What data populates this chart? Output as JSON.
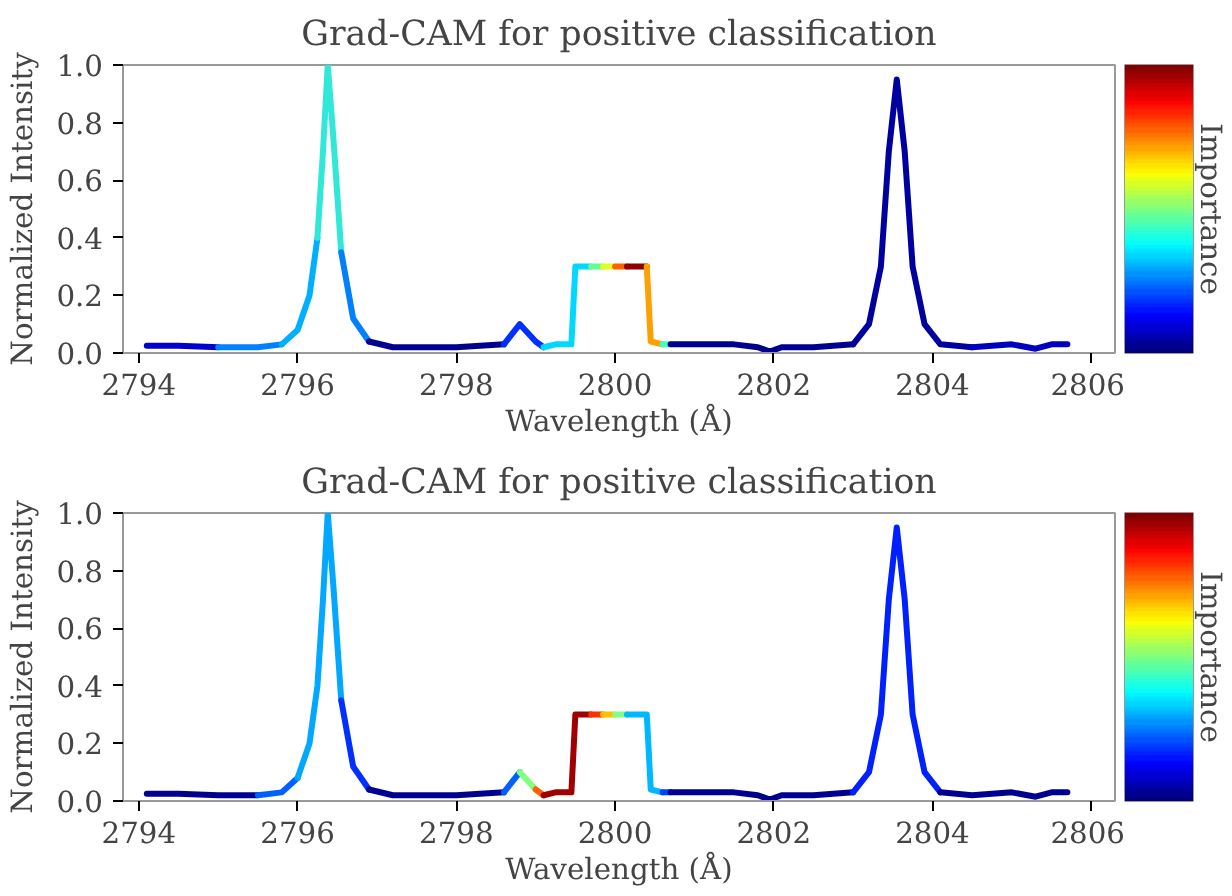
{
  "chart_data": [
    {
      "type": "line",
      "title": "Grad-CAM for positive classification",
      "xlabel": "Wavelength (Å)",
      "ylabel": "Normalized Intensity",
      "clabel": "Importance",
      "series": [
        {
          "color": "#0000d0",
          "x": [
            2794.1,
            2794.5,
            2795.0
          ],
          "values": [
            0.025,
            0.025,
            0.02
          ]
        },
        {
          "color": "#0080ff",
          "x": [
            2795.0,
            2795.5,
            2795.8
          ],
          "values": [
            0.02,
            0.02,
            0.03
          ]
        },
        {
          "color": "#00b0ff",
          "x": [
            2795.8,
            2796.0,
            2796.15,
            2796.25
          ],
          "values": [
            0.03,
            0.08,
            0.2,
            0.4
          ]
        },
        {
          "color": "#30e8d8",
          "x": [
            2796.25,
            2796.32,
            2796.38,
            2796.45,
            2796.55
          ],
          "values": [
            0.4,
            0.7,
            1.0,
            0.75,
            0.35
          ]
        },
        {
          "color": "#0080ff",
          "x": [
            2796.55,
            2796.7,
            2796.9
          ],
          "values": [
            0.35,
            0.12,
            0.04
          ]
        },
        {
          "color": "#000090",
          "x": [
            2796.9,
            2797.2,
            2798.0,
            2798.6
          ],
          "values": [
            0.04,
            0.02,
            0.02,
            0.03
          ]
        },
        {
          "color": "#0030ff",
          "x": [
            2798.6,
            2798.8,
            2799.0,
            2799.1
          ],
          "values": [
            0.03,
            0.1,
            0.04,
            0.02
          ]
        },
        {
          "color": "#00d8ff",
          "x": [
            2799.1,
            2799.25,
            2799.45,
            2799.5,
            2799.7
          ],
          "values": [
            0.02,
            0.03,
            0.03,
            0.3,
            0.3
          ]
        },
        {
          "color": "#60ff90",
          "x": [
            2799.7,
            2799.85
          ],
          "values": [
            0.3,
            0.3
          ]
        },
        {
          "color": "#e0ff20",
          "x": [
            2799.85,
            2800.0
          ],
          "values": [
            0.3,
            0.3
          ]
        },
        {
          "color": "#ff6000",
          "x": [
            2800.0,
            2800.15
          ],
          "values": [
            0.3,
            0.3
          ]
        },
        {
          "color": "#900000",
          "x": [
            2800.15,
            2800.3,
            2800.4
          ],
          "values": [
            0.3,
            0.3,
            0.3
          ]
        },
        {
          "color": "#ffa000",
          "x": [
            2800.4,
            2800.45,
            2800.6
          ],
          "values": [
            0.3,
            0.04,
            0.03
          ]
        },
        {
          "color": "#40ffc0",
          "x": [
            2800.6,
            2800.7
          ],
          "values": [
            0.03,
            0.03
          ]
        },
        {
          "color": "#000090",
          "x": [
            2800.7,
            2801.0,
            2801.5,
            2801.8,
            2801.95,
            2802.1,
            2802.5,
            2803.0
          ],
          "values": [
            0.03,
            0.03,
            0.03,
            0.02,
            0.005,
            0.02,
            0.02,
            0.03
          ]
        },
        {
          "color": "#0000a0",
          "x": [
            2803.0,
            2803.2,
            2803.35,
            2803.45,
            2803.55,
            2803.65,
            2803.75,
            2803.9,
            2804.1,
            2804.5
          ],
          "values": [
            0.03,
            0.1,
            0.3,
            0.7,
            0.95,
            0.7,
            0.3,
            0.1,
            0.03,
            0.02
          ]
        },
        {
          "color": "#0000c0",
          "x": [
            2804.5,
            2805.0,
            2805.3,
            2805.5,
            2805.7
          ],
          "values": [
            0.02,
            0.03,
            0.015,
            0.03,
            0.03
          ]
        }
      ],
      "xlim": [
        2793.8,
        2806.3
      ],
      "xticks": [
        2794,
        2796,
        2798,
        2800,
        2802,
        2804,
        2806
      ],
      "ylim": [
        0,
        1
      ],
      "yticks": [
        {
          "value": 0,
          "label": "0.0"
        },
        {
          "value": 0.2,
          "label": "0.2"
        },
        {
          "value": 0.4,
          "label": "0.4"
        },
        {
          "value": 0.6,
          "label": "0.6"
        },
        {
          "value": 0.8,
          "label": "0.8"
        },
        {
          "value": 1,
          "label": "1.0"
        }
      ]
    },
    {
      "type": "line",
      "title": "Grad-CAM for positive classification",
      "xlabel": "Wavelength (Å)",
      "ylabel": "Normalized Intensity",
      "clabel": "Importance",
      "series": [
        {
          "color": "#000090",
          "x": [
            2794.1,
            2794.5,
            2795.0,
            2795.5
          ],
          "values": [
            0.025,
            0.025,
            0.02,
            0.02
          ]
        },
        {
          "color": "#0060ff",
          "x": [
            2795.5,
            2795.8,
            2796.0
          ],
          "values": [
            0.02,
            0.03,
            0.08
          ]
        },
        {
          "color": "#00a8ff",
          "x": [
            2796.0,
            2796.15,
            2796.25,
            2796.32,
            2796.38,
            2796.45,
            2796.55
          ],
          "values": [
            0.08,
            0.2,
            0.4,
            0.7,
            1.0,
            0.75,
            0.35
          ]
        },
        {
          "color": "#0030ff",
          "x": [
            2796.55,
            2796.7,
            2796.9
          ],
          "values": [
            0.35,
            0.12,
            0.04
          ]
        },
        {
          "color": "#000090",
          "x": [
            2796.9,
            2797.2,
            2798.0,
            2798.6
          ],
          "values": [
            0.04,
            0.02,
            0.02,
            0.03
          ]
        },
        {
          "color": "#0060ff",
          "x": [
            2798.6,
            2798.8
          ],
          "values": [
            0.03,
            0.1
          ]
        },
        {
          "color": "#80ff80",
          "x": [
            2798.8,
            2799.0
          ],
          "values": [
            0.1,
            0.04
          ]
        },
        {
          "color": "#ff6000",
          "x": [
            2799.0,
            2799.1
          ],
          "values": [
            0.04,
            0.02
          ]
        },
        {
          "color": "#a00000",
          "x": [
            2799.1,
            2799.25,
            2799.45,
            2799.5,
            2799.7
          ],
          "values": [
            0.02,
            0.03,
            0.03,
            0.3,
            0.3
          ]
        },
        {
          "color": "#ff3000",
          "x": [
            2799.7,
            2799.85
          ],
          "values": [
            0.3,
            0.3
          ]
        },
        {
          "color": "#ffc000",
          "x": [
            2799.85,
            2800.0
          ],
          "values": [
            0.3,
            0.3
          ]
        },
        {
          "color": "#80ff80",
          "x": [
            2800.0,
            2800.15
          ],
          "values": [
            0.3,
            0.3
          ]
        },
        {
          "color": "#00b8ff",
          "x": [
            2800.15,
            2800.3,
            2800.4,
            2800.45,
            2800.6
          ],
          "values": [
            0.3,
            0.3,
            0.3,
            0.04,
            0.03
          ]
        },
        {
          "color": "#0040ff",
          "x": [
            2800.6,
            2800.7
          ],
          "values": [
            0.03,
            0.03
          ]
        },
        {
          "color": "#000090",
          "x": [
            2800.7,
            2801.0,
            2801.5,
            2801.8,
            2801.95,
            2802.1,
            2802.5,
            2803.0
          ],
          "values": [
            0.03,
            0.03,
            0.03,
            0.02,
            0.005,
            0.02,
            0.02,
            0.03
          ]
        },
        {
          "color": "#0020ff",
          "x": [
            2803.0,
            2803.2,
            2803.35,
            2803.45,
            2803.55,
            2803.65,
            2803.75,
            2803.9,
            2804.1
          ],
          "values": [
            0.03,
            0.1,
            0.3,
            0.7,
            0.95,
            0.7,
            0.3,
            0.1,
            0.03
          ]
        },
        {
          "color": "#000090",
          "x": [
            2804.1,
            2804.5,
            2805.0,
            2805.3,
            2805.5,
            2805.7
          ],
          "values": [
            0.03,
            0.02,
            0.03,
            0.015,
            0.03,
            0.03
          ]
        }
      ],
      "xlim": [
        2793.8,
        2806.3
      ],
      "xticks": [
        2794,
        2796,
        2798,
        2800,
        2802,
        2804,
        2806
      ],
      "ylim": [
        0,
        1
      ],
      "yticks": [
        {
          "value": 0,
          "label": "0.0"
        },
        {
          "value": 0.2,
          "label": "0.2"
        },
        {
          "value": 0.4,
          "label": "0.4"
        },
        {
          "value": 0.6,
          "label": "0.6"
        },
        {
          "value": 0.8,
          "label": "0.8"
        },
        {
          "value": 1,
          "label": "1.0"
        }
      ]
    }
  ]
}
